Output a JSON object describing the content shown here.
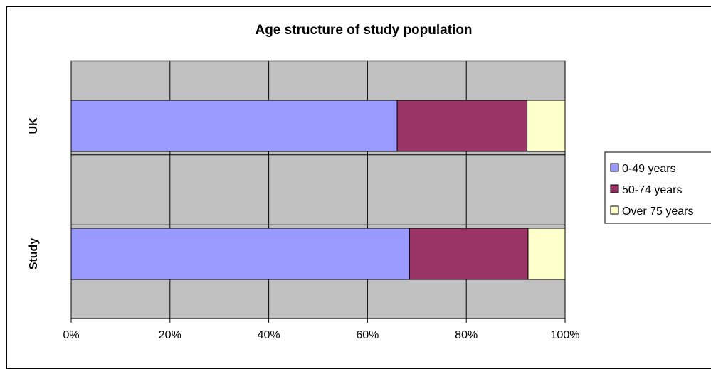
{
  "chart_data": {
    "type": "bar",
    "orientation": "horizontal",
    "stacking": "percent",
    "title": "Age structure of study population",
    "categories": [
      "UK",
      "Study"
    ],
    "series": [
      {
        "name": "0-49 years",
        "values": [
          66,
          68.5
        ],
        "color": "#9999ff"
      },
      {
        "name": "50-74 years",
        "values": [
          26.3,
          24
        ],
        "color": "#993366"
      },
      {
        "name": "Over 75 years",
        "values": [
          7.7,
          7.5
        ],
        "color": "#ffffcc"
      }
    ],
    "x_ticks": [
      "0%",
      "20%",
      "40%",
      "60%",
      "80%",
      "100%"
    ],
    "xlim": [
      0,
      100
    ],
    "grid": true,
    "legend_position": "right",
    "plot_background": "#c0c0c0"
  }
}
